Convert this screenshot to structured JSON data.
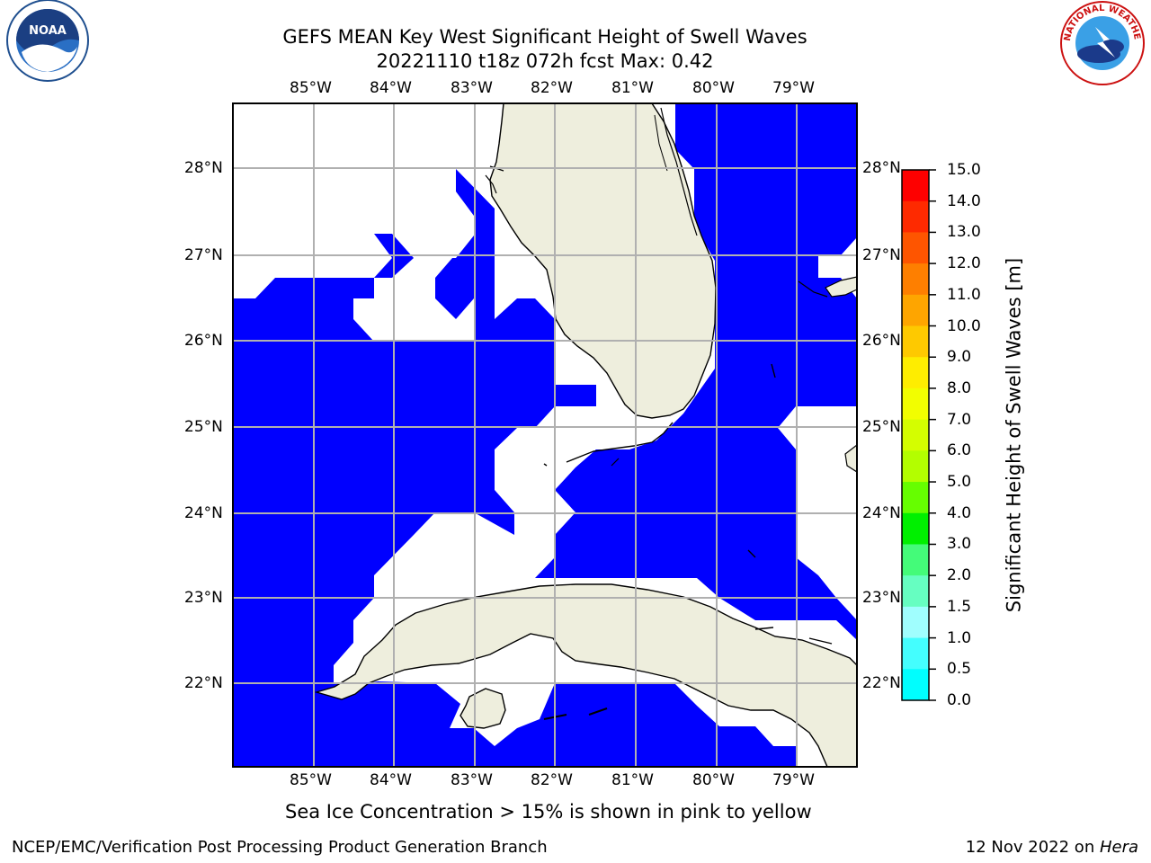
{
  "header": {
    "title_line1": "GEFS MEAN Key West Significant Height of Swell Waves",
    "title_line2": "20221110 t18z 072h fcst   Max: 0.42"
  },
  "logos": {
    "left": {
      "name": "noaa-logo",
      "text": "NOAA"
    },
    "right": {
      "name": "nws-logo",
      "text": "NATIONAL WEATHER SERVICE"
    }
  },
  "map": {
    "lon_labels": [
      "85°W",
      "84°W",
      "83°W",
      "82°W",
      "81°W",
      "80°W",
      "79°W"
    ],
    "lat_labels": [
      "28°N",
      "27°N",
      "26°N",
      "25°N",
      "24°N",
      "23°N",
      "22°N"
    ],
    "colors": {
      "ocean_low": "#0000ff",
      "land": "#eeeedd",
      "grid": "#b0b0b0",
      "no_data": "#ffffff"
    }
  },
  "colorbar": {
    "title": "Significant Height of Swell Waves [m]",
    "ticks": [
      "15.0",
      "14.0",
      "13.0",
      "12.0",
      "11.0",
      "10.0",
      "9.0",
      "8.0",
      "7.0",
      "6.0",
      "5.0",
      "4.0",
      "3.0",
      "2.0",
      "1.5",
      "1.0",
      "0.5",
      "0.0"
    ],
    "colors": [
      "#fe0000",
      "#fe2a00",
      "#fe5500",
      "#fe7f00",
      "#fea500",
      "#fec900",
      "#feed00",
      "#f2fe00",
      "#d4fe00",
      "#b3fe00",
      "#66fe00",
      "#00f000",
      "#44fb79",
      "#66fec1",
      "#a0fefe",
      "#44fefe",
      "#00fefe",
      "#0080fe",
      "#0000fe"
    ]
  },
  "note": "Sea Ice Concentration > 15% is shown in pink to yellow",
  "footer": {
    "left": "NCEP/EMC/Verification Post Processing Product Generation Branch",
    "date": "12 Nov 2022 on ",
    "host": "Hera"
  }
}
